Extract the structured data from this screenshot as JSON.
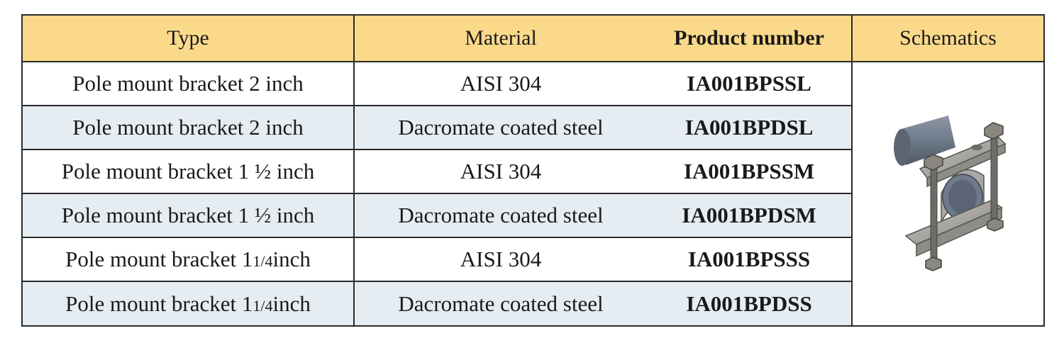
{
  "table": {
    "headers": {
      "type": "Type",
      "material": "Material",
      "product_number": "Product number",
      "schematics": "Schematics"
    },
    "rows": [
      {
        "type_main": "Pole mount bracket 2 inch",
        "type_pre": "",
        "type_frac": "",
        "type_post": "",
        "material": "AISI 304",
        "product_number": "IA001BPSSL"
      },
      {
        "type_main": "Pole mount bracket 2 inch",
        "type_pre": "",
        "type_frac": "",
        "type_post": "",
        "material": "Dacromate coated steel",
        "product_number": "IA001BPDSL"
      },
      {
        "type_main": "Pole mount bracket 1 ½ inch",
        "type_pre": "",
        "type_frac": "",
        "type_post": "",
        "material": "AISI 304",
        "product_number": "IA001BPSSM"
      },
      {
        "type_main": "Pole mount bracket 1 ½ inch",
        "type_pre": "",
        "type_frac": "",
        "type_post": "",
        "material": "Dacromate coated steel",
        "product_number": "IA001BPDSM"
      },
      {
        "type_main": "",
        "type_pre": "Pole mount bracket 1 ",
        "type_frac": "1/4",
        "type_post": " inch",
        "material": "AISI 304",
        "product_number": "IA001BPSSS"
      },
      {
        "type_main": "",
        "type_pre": "Pole mount bracket 1 ",
        "type_frac": "1/4",
        "type_post": " inch",
        "material": "Dacromate coated steel",
        "product_number": "IA001BPDSS"
      }
    ]
  },
  "schematic": {
    "icon": "pole-mount-bracket-illustration",
    "colors": {
      "pipe": "#6f7a8a",
      "bracket": "#9b9a94",
      "bracket_dark": "#6d6c66",
      "bolt": "#7a7670"
    }
  },
  "colors": {
    "header_bg": "#fad98a",
    "alt_row_bg": "#e5ecf2",
    "border": "#2a2a2a"
  }
}
